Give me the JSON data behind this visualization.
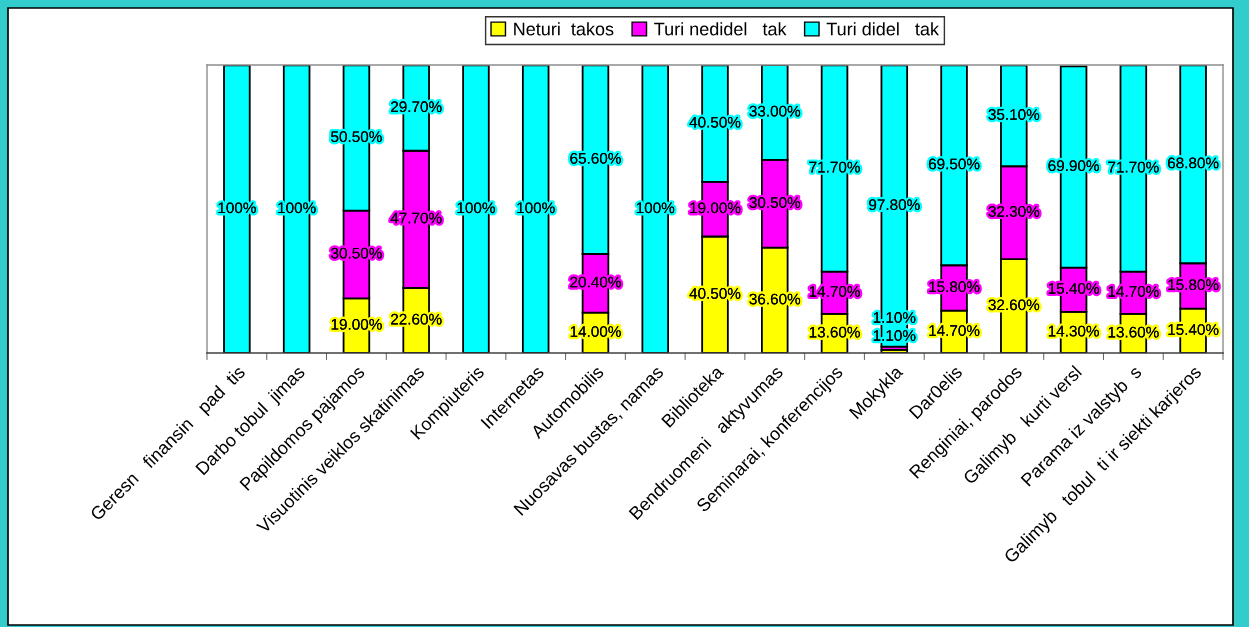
{
  "chart_data": {
    "type": "bar",
    "stacked": true,
    "legend": "top",
    "tick_labels": "x",
    "ylim": [
      0,
      100.1
    ],
    "categories": [
      "Geresn   finansin   pad  tis",
      "Darbo tobul  jimas",
      "Papildomos pajamos",
      "Visuotinis veiklos skatinimas",
      "Kompiuteris",
      "Internetas",
      "Automobilis",
      "Nuosavas bustas, namas",
      "Biblioteka",
      "Bendruomeni   aktyvumas",
      "Seminarai, konferencijos",
      "Mokykla",
      "Dar0elis",
      "Renginiai, parodos",
      "Galimyb   kurti versl",
      "Parama iz valstyb  s",
      "Galimyb   tobul  ti ir siekti karjeros"
    ],
    "series": [
      {
        "name": "Neturi  takos",
        "color": "#ffff00",
        "values": [
          null,
          null,
          19.0,
          22.6,
          null,
          null,
          14.0,
          null,
          40.5,
          36.6,
          13.6,
          1.1,
          14.7,
          32.6,
          14.3,
          13.6,
          15.4
        ],
        "value_labels": [
          null,
          null,
          "19.00%",
          "22.60%",
          null,
          null,
          "14.00%",
          null,
          "40.50%",
          "36.60%",
          "13.60%",
          "1.10%",
          "14.70%",
          "32.60%",
          "14.30%",
          "13.60%",
          "15.40%"
        ]
      },
      {
        "name": "Turi nedidel   tak",
        "color": "#ff00ff",
        "values": [
          null,
          null,
          30.5,
          47.7,
          null,
          null,
          20.4,
          null,
          19.0,
          30.5,
          14.7,
          1.1,
          15.8,
          32.3,
          15.4,
          14.7,
          15.8
        ],
        "value_labels": [
          null,
          null,
          "30.50%",
          "47.70%",
          null,
          null,
          "20.40%",
          null,
          "19.00%",
          "30.50%",
          "14.70%",
          "1.10%",
          "15.80%",
          "32.30%",
          "15.40%",
          "14.70%",
          "15.80%"
        ]
      },
      {
        "name": "Turi didel   tak",
        "color": "#00ffff",
        "values": [
          100,
          100,
          50.5,
          29.7,
          100,
          100,
          65.6,
          100,
          40.5,
          33.0,
          71.7,
          97.8,
          69.5,
          35.1,
          69.9,
          71.7,
          68.8
        ],
        "value_labels": [
          "100%",
          "100%",
          "50.50%",
          "29.70%",
          "100%",
          "100%",
          "65.60%",
          "100%",
          "40.50%",
          "33.00%",
          "71.70%",
          "97.80%",
          "69.50%",
          "35.10%",
          "69.90%",
          "71.70%",
          "68.80%"
        ]
      }
    ]
  }
}
